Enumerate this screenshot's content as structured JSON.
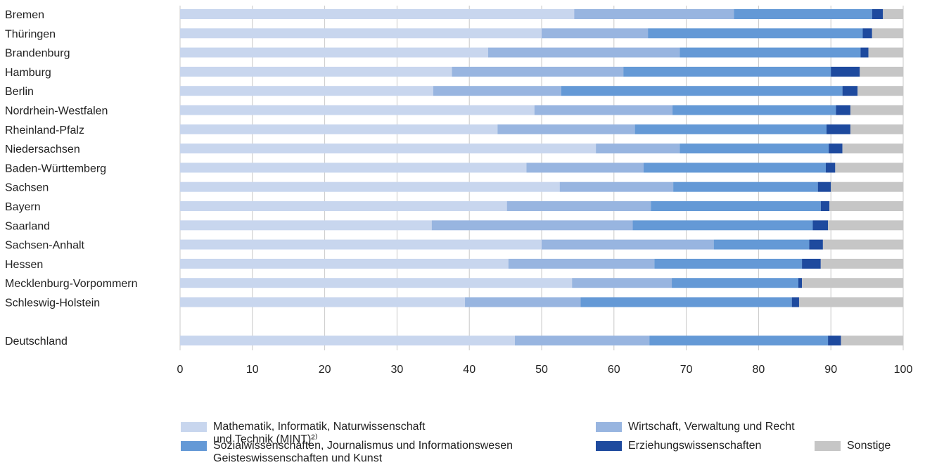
{
  "chart_data": {
    "type": "bar",
    "orientation": "horizontal",
    "stacked": true,
    "categories": [
      "Bremen",
      "Thüringen",
      "Brandenburg",
      "Hamburg",
      "Berlin",
      "Nordrhein-Westfalen",
      "Rheinland-Pfalz",
      "Niedersachsen",
      "Baden-Württemberg",
      "Sachsen",
      "Bayern",
      "Saarland",
      "Sachsen-Anhalt",
      "Hessen",
      "Mecklenburg-Vorpommern",
      "Schleswig-Holstein",
      "",
      "Deutschland"
    ],
    "series": [
      {
        "name": "Mathematik, Informatik, Naturwissenschaft\nund Technik (MINT)²⁾",
        "color": "#c8d6ee",
        "values": [
          54.5,
          50.0,
          42.6,
          37.6,
          35.0,
          49.0,
          43.9,
          57.5,
          47.9,
          52.5,
          45.2,
          34.8,
          50.0,
          45.4,
          54.2,
          39.4,
          null,
          46.3
        ]
      },
      {
        "name": "Wirtschaft, Verwaltung und Recht",
        "color": "#98b5e0",
        "values": [
          22.1,
          14.7,
          26.5,
          23.7,
          17.7,
          19.1,
          19.0,
          11.6,
          16.2,
          15.7,
          19.9,
          27.8,
          23.8,
          20.2,
          13.8,
          16.0,
          null,
          18.6
        ]
      },
      {
        "name": "Sozialwissenschaften, Journalismus und Informationswesen\nGeisteswissenschaften und Kunst",
        "color": "#6499d6",
        "values": [
          19.1,
          29.7,
          25.0,
          28.7,
          38.9,
          22.6,
          26.5,
          20.6,
          25.2,
          20.0,
          23.5,
          24.9,
          13.2,
          20.4,
          17.5,
          29.2,
          null,
          24.7
        ]
      },
      {
        "name": "Erziehungswissenschaften",
        "color": "#1e4a9e",
        "values": [
          1.5,
          1.3,
          1.1,
          4.0,
          2.1,
          2.0,
          3.3,
          1.9,
          1.3,
          1.8,
          1.2,
          2.1,
          1.9,
          2.6,
          0.5,
          1.0,
          null,
          1.8
        ]
      },
      {
        "name": "Sonstige",
        "color": "#c6c6c6",
        "values": [
          2.8,
          4.3,
          4.8,
          6.0,
          6.3,
          7.3,
          7.3,
          8.4,
          9.4,
          10.0,
          10.2,
          10.4,
          11.1,
          11.4,
          14.0,
          14.4,
          null,
          8.6
        ]
      }
    ],
    "x_ticks": [
      "0",
      "10",
      "20",
      "30",
      "40",
      "50",
      "60",
      "70",
      "80",
      "90",
      "100"
    ],
    "xlim": [
      0,
      100
    ],
    "title": "",
    "xlabel": "",
    "ylabel": "",
    "grid": "vertical",
    "legend_position": "bottom"
  }
}
